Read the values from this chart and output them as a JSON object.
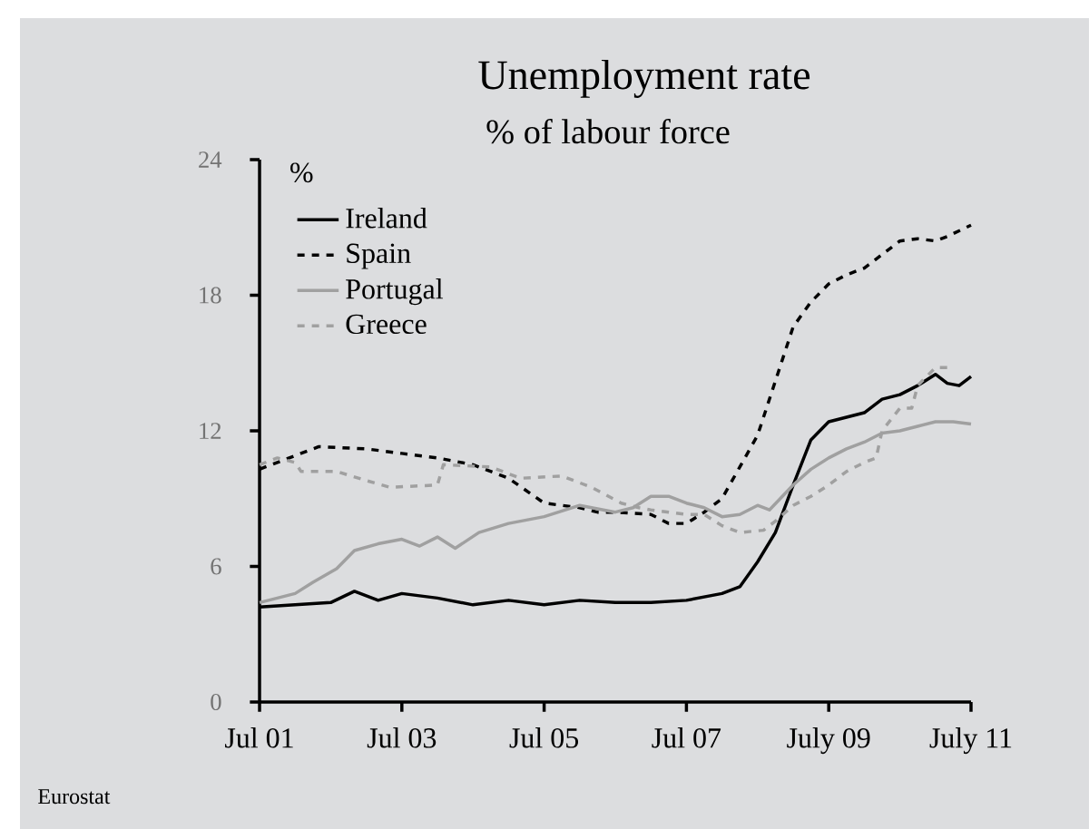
{
  "chart_data": {
    "type": "line",
    "title": "Unemployment rate",
    "subtitle": "% of labour force",
    "ylabel": "%",
    "annotations": [
      "Eurostat"
    ],
    "x": [
      "2001-07",
      "2002-01",
      "2002-07",
      "2002-11",
      "2003-03",
      "2003-07",
      "2004-01",
      "2004-07",
      "2005-01",
      "2005-07",
      "2006-01",
      "2006-07",
      "2007-01",
      "2007-07",
      "2008-01",
      "2008-04",
      "2008-07",
      "2008-10",
      "2009-01",
      "2009-04",
      "2009-07",
      "2009-10",
      "2010-01",
      "2010-04",
      "2010-07",
      "2010-10",
      "2011-01",
      "2011-03",
      "2011-05",
      "2011-07"
    ],
    "series": [
      {
        "name": "Ireland",
        "color": "#000000",
        "line_style": "solid",
        "values": [
          4.2,
          4.3,
          4.4,
          4.9,
          4.5,
          4.8,
          4.6,
          4.3,
          4.5,
          4.3,
          4.5,
          4.4,
          4.4,
          4.5,
          4.8,
          5.1,
          6.2,
          7.5,
          9.6,
          11.6,
          12.4,
          12.6,
          12.8,
          13.4,
          13.6,
          14.0,
          14.5,
          14.1,
          14.0,
          14.4
        ]
      },
      {
        "name": "Spain",
        "color": "#000000",
        "line_style": "dashed",
        "x": [
          "2001-07",
          "2001-10",
          "2002-01",
          "2002-05",
          "2003-01",
          "2003-07",
          "2004-01",
          "2004-07",
          "2005-01",
          "2005-07",
          "2006-01",
          "2006-04",
          "2006-07",
          "2007-01",
          "2007-04",
          "2007-07",
          "2007-10",
          "2008-01",
          "2008-04",
          "2008-07",
          "2008-10",
          "2009-01",
          "2009-04",
          "2009-07",
          "2009-10",
          "2010-01",
          "2010-04",
          "2010-07",
          "2010-10",
          "2011-01",
          "2011-03",
          "2011-07"
        ],
        "values": [
          10.3,
          10.6,
          10.9,
          11.3,
          11.2,
          11.0,
          10.8,
          10.5,
          9.9,
          8.8,
          8.6,
          8.4,
          8.4,
          8.3,
          7.9,
          7.9,
          8.4,
          9.0,
          10.4,
          11.8,
          14.2,
          16.6,
          17.7,
          18.5,
          18.9,
          19.2,
          19.8,
          20.4,
          20.5,
          20.4,
          20.6,
          21.1
        ]
      },
      {
        "name": "Portugal",
        "color": "#a0a0a0",
        "line_style": "solid",
        "x": [
          "2001-07",
          "2002-01",
          "2002-04",
          "2002-08",
          "2002-11",
          "2003-03",
          "2003-07",
          "2003-10",
          "2004-01",
          "2004-04",
          "2004-08",
          "2005-01",
          "2005-07",
          "2006-01",
          "2006-07",
          "2006-10",
          "2007-01",
          "2007-04",
          "2007-07",
          "2007-10",
          "2008-01",
          "2008-04",
          "2008-07",
          "2008-09",
          "2009-01",
          "2009-04",
          "2009-07",
          "2009-10",
          "2010-01",
          "2010-04",
          "2010-07",
          "2010-10",
          "2011-01",
          "2011-04",
          "2011-07"
        ],
        "values": [
          4.4,
          4.8,
          5.3,
          5.9,
          6.7,
          7.0,
          7.2,
          6.9,
          7.3,
          6.8,
          7.5,
          7.9,
          8.2,
          8.7,
          8.4,
          8.6,
          9.1,
          9.1,
          8.8,
          8.6,
          8.2,
          8.3,
          8.7,
          8.5,
          9.6,
          10.3,
          10.8,
          11.2,
          11.5,
          11.9,
          12.0,
          12.2,
          12.4,
          12.4,
          12.3
        ]
      },
      {
        "name": "Greece",
        "color": "#a0a0a0",
        "line_style": "dashed",
        "x": [
          "2001-07",
          "2001-10",
          "2002-01",
          "2002-02",
          "2002-08",
          "2003-01",
          "2003-05",
          "2004-01",
          "2004-02",
          "2004-10",
          "2005-03",
          "2005-10",
          "2006-03",
          "2006-08",
          "2006-11",
          "2007-01",
          "2007-07",
          "2007-10",
          "2008-01",
          "2008-04",
          "2008-08",
          "2008-10",
          "2009-01",
          "2009-04",
          "2009-07",
          "2009-10",
          "2010-01",
          "2010-03",
          "2010-04",
          "2010-07",
          "2010-09",
          "2010-10",
          "2011-01",
          "2011-03"
        ],
        "values": [
          10.5,
          10.8,
          10.6,
          10.2,
          10.2,
          9.8,
          9.5,
          9.6,
          10.5,
          10.4,
          9.9,
          10.0,
          9.5,
          8.8,
          8.6,
          8.5,
          8.3,
          8.3,
          7.8,
          7.5,
          7.6,
          8.0,
          8.7,
          9.1,
          9.6,
          10.2,
          10.6,
          10.8,
          12.0,
          13.0,
          13.0,
          14.0,
          14.8,
          14.8
        ]
      }
    ],
    "xlim": [
      "2001-07",
      "2011-07"
    ],
    "xticks": [
      {
        "value": "2001-07",
        "label": "Jul 01"
      },
      {
        "value": "2003-07",
        "label": "Jul 03"
      },
      {
        "value": "2005-07",
        "label": "Jul 05"
      },
      {
        "value": "2007-07",
        "label": "Jul 07"
      },
      {
        "value": "2009-07",
        "label": "July 09"
      },
      {
        "value": "2011-07",
        "label": "July 11"
      }
    ],
    "ylim": [
      0,
      24
    ],
    "yticks": [
      0,
      6,
      12,
      18,
      24
    ],
    "grid": false,
    "legend": "top left",
    "marker": "none"
  }
}
